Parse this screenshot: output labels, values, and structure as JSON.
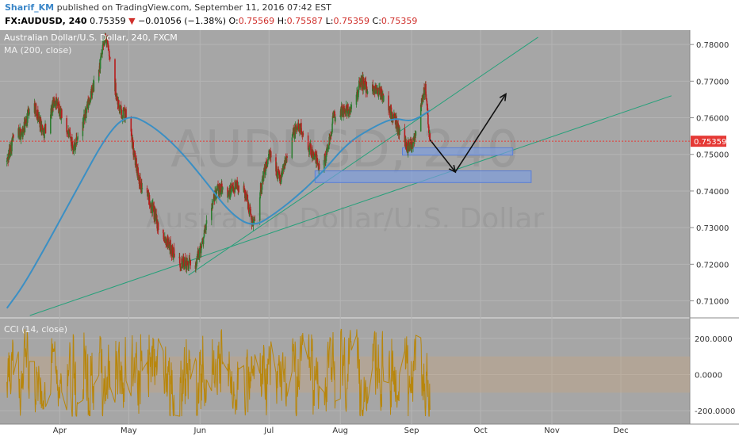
{
  "header": {
    "author": "Sharif_KM",
    "published": "published on TradingView.com, September 11, 2016 07:42 EST",
    "symbol": "FX:AUDUSD, 240",
    "last": "0.75359",
    "change_arrow": "▼",
    "change": "−0.01056 (−1.38%)",
    "open_label": "O:",
    "open": "0.75569",
    "high_label": "H:",
    "high": "0.75587",
    "low_label": "L:",
    "low": "0.75359",
    "close_label": "C:",
    "close": "0.75359"
  },
  "colors": {
    "background": "#a6a6a6",
    "panel_bg": "#a6a6a6",
    "candle_up": "#2e7d32",
    "candle_down": "#b71c1c",
    "ma": "#3b8fc4",
    "trendline": "#26a07a",
    "zone_fill": "#7b9ce0",
    "price_label_bg": "#e53935",
    "cci": "#b8860b",
    "cci_band": "#c8a27a"
  },
  "chart_data": [
    {
      "type": "candlestick",
      "title": "Australian Dollar/U.S. Dollar, 240, FXCM",
      "indicator_label": "MA (200, close)",
      "watermark_big": "AUDUSD, 240",
      "watermark_small": "Australian Dollar/U.S. Dollar",
      "y_ticks": [
        "0.78000",
        "0.77000",
        "0.76000",
        "0.75000",
        "0.74000",
        "0.73000",
        "0.72000",
        "0.71000"
      ],
      "ylim": [
        0.706,
        0.7835
      ],
      "current_price": "0.75359",
      "x_ticks": [
        "Apr",
        "May",
        "Jun",
        "Jul",
        "Aug",
        "Sep",
        "Oct",
        "Nov",
        "Dec"
      ],
      "series": [
        {
          "name": "AUDUSD",
          "kind": "close",
          "keyframes": [
            [
              "2016-03-09",
              0.748
            ],
            [
              "2016-03-12",
              0.755
            ],
            [
              "2016-03-16",
              0.756
            ],
            [
              "2016-03-20",
              0.765
            ],
            [
              "2016-03-25",
              0.756
            ],
            [
              "2016-03-30",
              0.765
            ],
            [
              "2016-04-02",
              0.76
            ],
            [
              "2016-04-07",
              0.752
            ],
            [
              "2016-04-10",
              0.756
            ],
            [
              "2016-04-14",
              0.765
            ],
            [
              "2016-04-18",
              0.773
            ],
            [
              "2016-04-21",
              0.7825
            ],
            [
              "2016-04-24",
              0.772
            ],
            [
              "2016-04-27",
              0.762
            ],
            [
              "2016-05-01",
              0.76
            ],
            [
              "2016-05-03",
              0.751
            ],
            [
              "2016-05-06",
              0.742
            ],
            [
              "2016-05-10",
              0.738
            ],
            [
              "2016-05-14",
              0.73
            ],
            [
              "2016-05-18",
              0.726
            ],
            [
              "2016-05-22",
              0.721
            ],
            [
              "2016-05-26",
              0.72
            ],
            [
              "2016-05-30",
              0.72
            ],
            [
              "2016-06-02",
              0.726
            ],
            [
              "2016-06-05",
              0.734
            ],
            [
              "2016-06-09",
              0.741
            ],
            [
              "2016-06-13",
              0.739
            ],
            [
              "2016-06-17",
              0.742
            ],
            [
              "2016-06-21",
              0.739
            ],
            [
              "2016-06-24",
              0.731
            ],
            [
              "2016-06-27",
              0.74
            ],
            [
              "2016-07-01",
              0.75
            ],
            [
              "2016-07-04",
              0.746
            ],
            [
              "2016-07-06",
              0.743
            ],
            [
              "2016-07-10",
              0.754
            ],
            [
              "2016-07-14",
              0.758
            ],
            [
              "2016-07-17",
              0.754
            ],
            [
              "2016-07-20",
              0.75
            ],
            [
              "2016-07-23",
              0.747
            ],
            [
              "2016-07-26",
              0.75
            ],
            [
              "2016-07-29",
              0.76
            ],
            [
              "2016-08-02",
              0.762
            ],
            [
              "2016-08-06",
              0.762
            ],
            [
              "2016-08-10",
              0.77
            ],
            [
              "2016-08-13",
              0.768
            ],
            [
              "2016-08-17",
              0.768
            ],
            [
              "2016-08-21",
              0.764
            ],
            [
              "2016-08-24",
              0.76
            ],
            [
              "2016-08-27",
              0.756
            ],
            [
              "2016-08-30",
              0.752
            ],
            [
              "2016-09-02",
              0.754
            ],
            [
              "2016-09-05",
              0.764
            ],
            [
              "2016-09-07",
              0.768
            ],
            [
              "2016-09-08",
              0.76
            ],
            [
              "2016-09-09",
              0.7536
            ]
          ]
        },
        {
          "name": "MA (200, close)",
          "kind": "line",
          "points": [
            [
              "2016-03-09",
              0.708
            ],
            [
              "2016-03-16",
              0.714
            ],
            [
              "2016-03-26",
              0.725
            ],
            [
              "2016-04-08",
              0.74
            ],
            [
              "2016-04-22",
              0.756
            ],
            [
              "2016-05-01",
              0.761
            ],
            [
              "2016-05-11",
              0.758
            ],
            [
              "2016-05-22",
              0.752
            ],
            [
              "2016-06-03",
              0.743
            ],
            [
              "2016-06-14",
              0.734
            ],
            [
              "2016-06-24",
              0.73
            ],
            [
              "2016-07-04",
              0.734
            ],
            [
              "2016-07-14",
              0.739
            ],
            [
              "2016-07-24",
              0.745
            ],
            [
              "2016-08-04",
              0.753
            ],
            [
              "2016-08-14",
              0.757
            ],
            [
              "2016-08-24",
              0.76
            ],
            [
              "2016-08-31",
              0.759
            ],
            [
              "2016-09-04",
              0.76
            ],
            [
              "2016-09-09",
              0.762
            ]
          ]
        }
      ],
      "drawings": {
        "trendlines": [
          [
            [
              "2016-05-27",
              0.717
            ],
            [
              "2016-10-26",
              0.782
            ]
          ],
          [
            [
              "2016-03-19",
              0.706
            ],
            [
              "2016-12-23",
              0.766
            ]
          ]
        ],
        "zones": [
          {
            "from": "2016-08-28",
            "to": "2016-10-15",
            "low": 0.7498,
            "high": 0.7518
          },
          {
            "from": "2016-07-21",
            "to": "2016-10-23",
            "low": 0.7423,
            "high": 0.7455
          }
        ],
        "arrow": [
          [
            "2016-09-09",
            0.754
          ],
          [
            "2016-09-20",
            0.7452
          ],
          [
            "2016-10-12",
            0.7665
          ]
        ]
      }
    },
    {
      "type": "line",
      "title": "CCI (14, close)",
      "y_ticks": [
        "200.0000",
        "0.0000",
        "-200.0000"
      ],
      "ylim": [
        -265,
        300
      ],
      "band": [
        -100,
        100
      ],
      "values_note_range": [
        -235,
        255
      ],
      "series": [
        {
          "name": "CCI (14, close)",
          "oscillating_between": [
            -230,
            250
          ]
        }
      ]
    }
  ]
}
